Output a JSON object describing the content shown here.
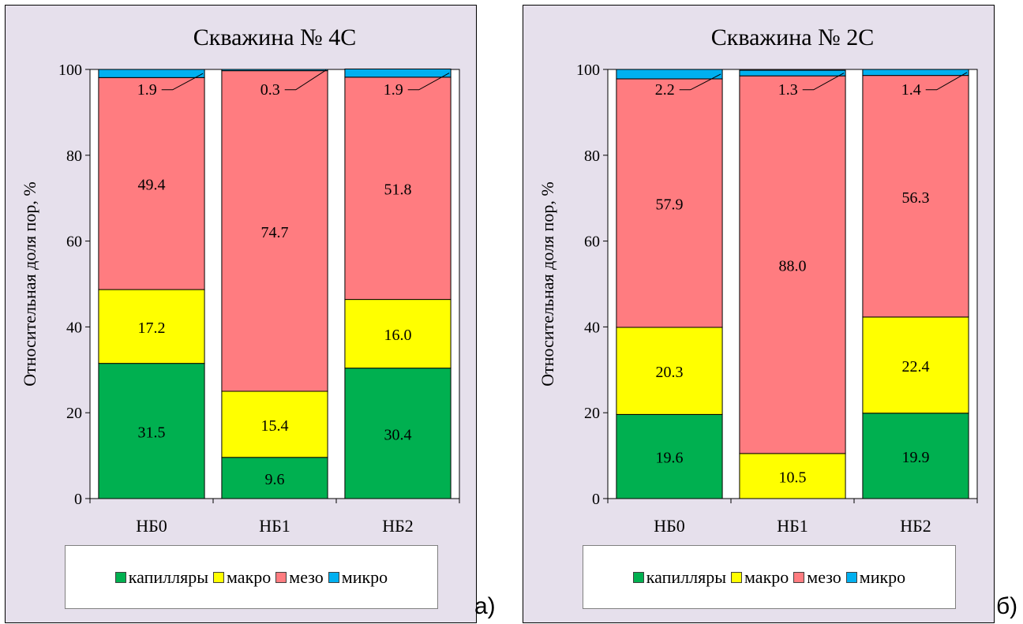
{
  "chart_data": [
    {
      "type": "bar",
      "stacked": true,
      "title": "Скважина № 4С",
      "ylabel": "Относительная доля пор, %",
      "xlabel": "",
      "ylim": [
        0,
        100
      ],
      "yticks": [
        0,
        20,
        40,
        60,
        80,
        100
      ],
      "categories": [
        "НБ0",
        "НБ1",
        "НБ2"
      ],
      "series": [
        {
          "name": "капилляры",
          "color": "#00b050",
          "values": [
            31.5,
            9.6,
            30.4
          ]
        },
        {
          "name": "макро",
          "color": "#ffff00",
          "values": [
            17.2,
            15.4,
            16.0
          ]
        },
        {
          "name": "мезо",
          "color": "#ff7c80",
          "values": [
            49.4,
            74.7,
            51.8
          ]
        },
        {
          "name": "микро",
          "color": "#00b0f0",
          "values": [
            1.9,
            0.3,
            1.9
          ]
        }
      ],
      "data_labels": {
        "капилляры": [
          "31.5",
          "9.6",
          "30.4"
        ],
        "макро": [
          "17.2",
          "15.4",
          "16.0"
        ],
        "мезо": [
          "49.4",
          "74.7",
          "51.8"
        ],
        "микро": [
          "1.9",
          "0.3",
          "1.9"
        ]
      },
      "legend_position": "bottom",
      "grid": false
    },
    {
      "type": "bar",
      "stacked": true,
      "title": "Скважина № 2С",
      "ylabel": "Относительная доля пор, %",
      "xlabel": "",
      "ylim": [
        0,
        100
      ],
      "yticks": [
        0,
        20,
        40,
        60,
        80,
        100
      ],
      "categories": [
        "НБ0",
        "НБ1",
        "НБ2"
      ],
      "series": [
        {
          "name": "капилляры",
          "color": "#00b050",
          "values": [
            19.6,
            0,
            19.9
          ]
        },
        {
          "name": "макро",
          "color": "#ffff00",
          "values": [
            20.3,
            10.5,
            22.4
          ]
        },
        {
          "name": "мезо",
          "color": "#ff7c80",
          "values": [
            57.9,
            88.0,
            56.3
          ]
        },
        {
          "name": "микро",
          "color": "#00b0f0",
          "values": [
            2.2,
            1.3,
            1.4
          ]
        }
      ],
      "data_labels": {
        "капилляры": [
          "19.6",
          "",
          "19.9"
        ],
        "макро": [
          "20.3",
          "10.5",
          "22.4"
        ],
        "мезо": [
          "57.9",
          "88.0",
          "56.3"
        ],
        "микро": [
          "2.2",
          "1.3",
          "1.4"
        ]
      },
      "legend_position": "bottom",
      "grid": false
    }
  ],
  "panel_letters": [
    "а)",
    "б)"
  ]
}
